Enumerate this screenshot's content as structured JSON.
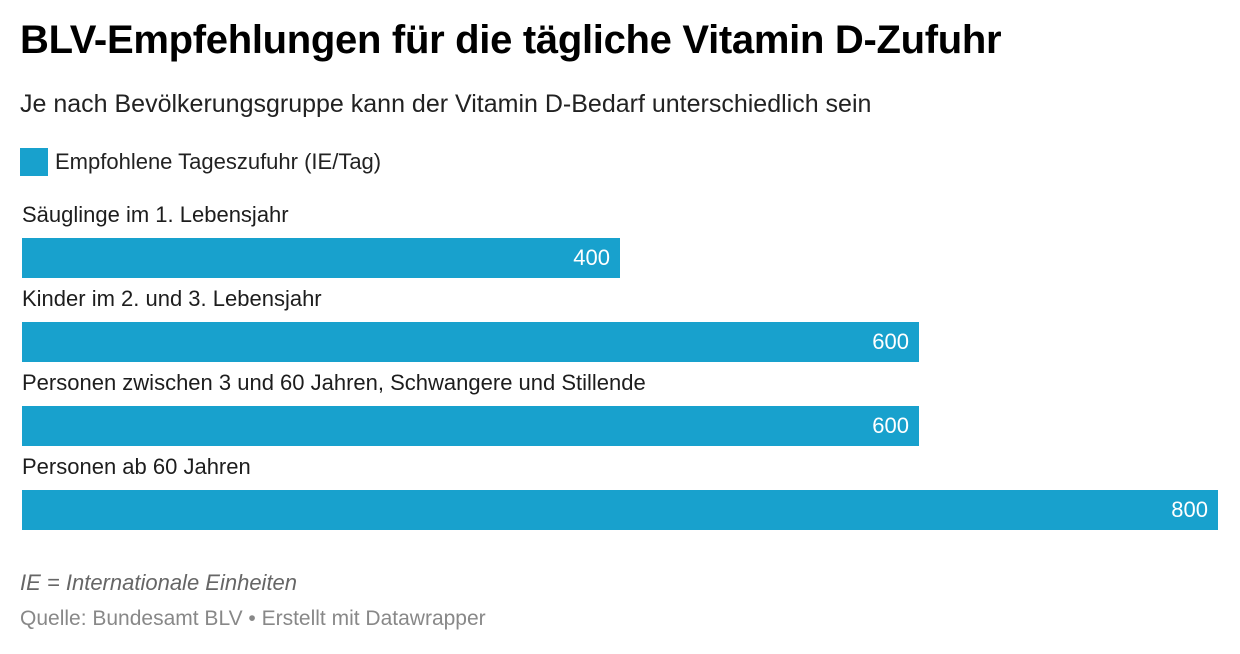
{
  "chart_data": {
    "type": "bar",
    "orientation": "horizontal",
    "title": "BLV-Empfehlungen für die tägliche Vitamin D-Zufuhr",
    "subtitle": "Je nach Bevölkerungsgruppe kann der Vitamin D-Bedarf unterschiedlich sein",
    "categories": [
      "Säuglinge im 1. Lebensjahr",
      "Kinder im 2. und 3. Lebensjahr",
      "Personen zwischen 3 und 60 Jahren, Schwangere und Stillende",
      "Personen ab 60 Jahren"
    ],
    "series": [
      {
        "name": "Empfohlene Tageszufuhr (IE/Tag)",
        "values": [
          400,
          600,
          600,
          800
        ],
        "value_labels": [
          "400",
          "600",
          "600",
          "800"
        ],
        "color": "#18a1cd"
      }
    ],
    "xlim": [
      0,
      800
    ],
    "grid": false,
    "legend": "top-left"
  },
  "footer": {
    "note": "IE = Internationale Einheiten",
    "source": "Quelle: Bundesamt BLV • Erstellt mit Datawrapper"
  }
}
